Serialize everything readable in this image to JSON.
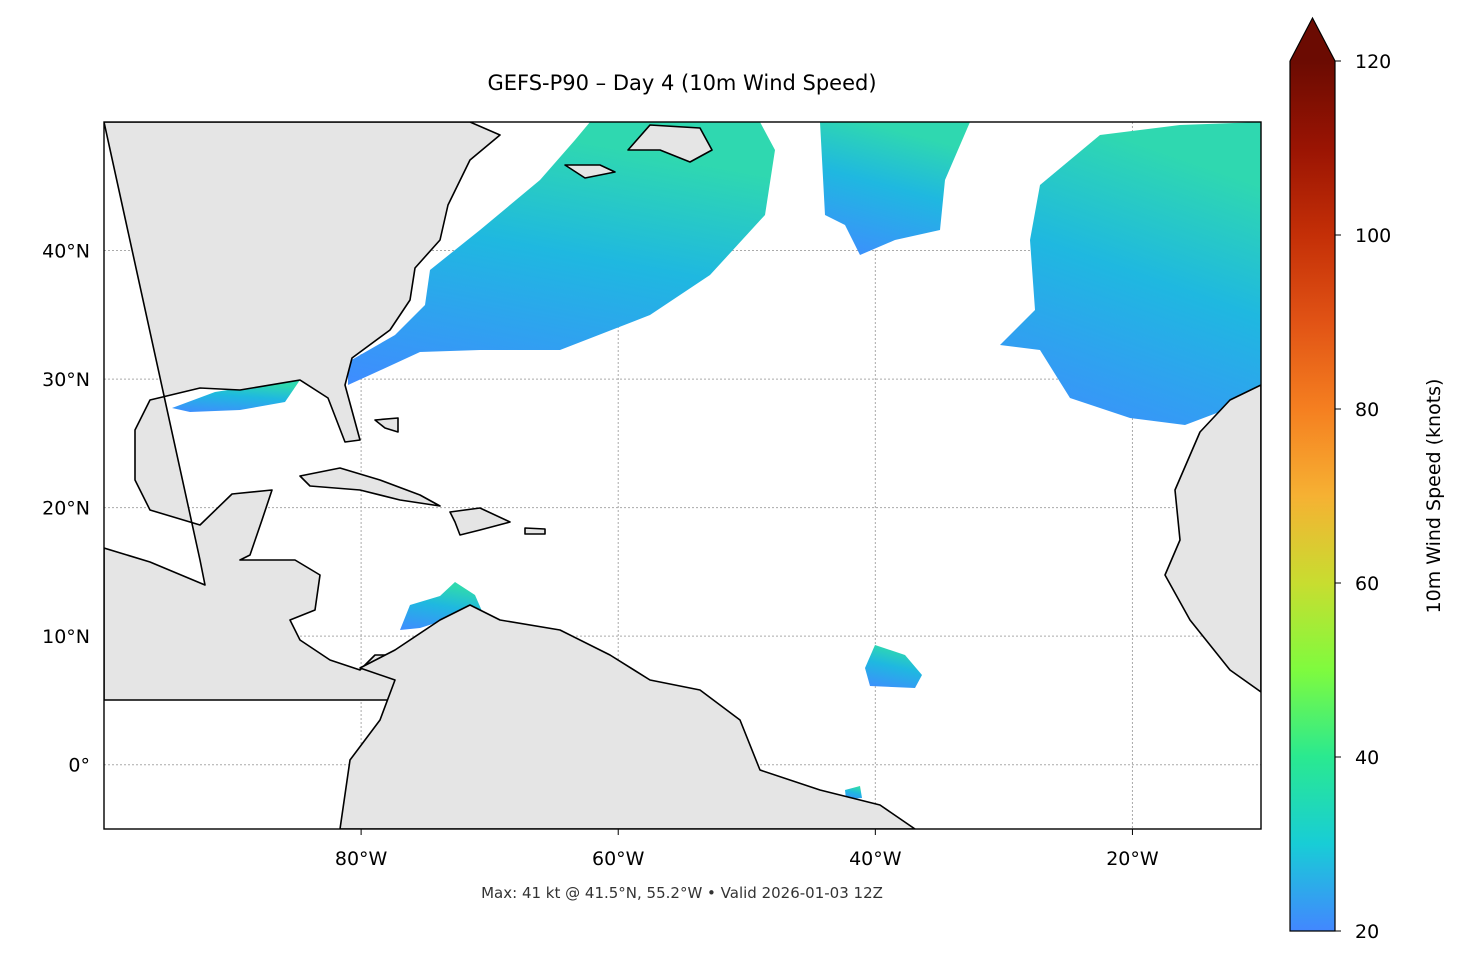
{
  "chart_data": {
    "type": "map",
    "title": "GEFS-P90 – Day 4 (10m Wind Speed)",
    "annotation": "Max: 41 kt @ 41.5°N, 55.2°W • Valid 2026-01-03 12Z",
    "xlim": [
      -100,
      -10
    ],
    "ylim": [
      -5,
      50
    ],
    "xticks": [
      {
        "value": -80,
        "label": "80°W"
      },
      {
        "value": -60,
        "label": "60°W"
      },
      {
        "value": -40,
        "label": "40°W"
      },
      {
        "value": -20,
        "label": "20°W"
      }
    ],
    "yticks": [
      {
        "value": 0,
        "label": "0°"
      },
      {
        "value": 10,
        "label": "10°N"
      },
      {
        "value": 20,
        "label": "20°N"
      },
      {
        "value": 30,
        "label": "30°N"
      },
      {
        "value": 40,
        "label": "40°N"
      }
    ],
    "grid": true,
    "colorbar": {
      "label": "10m Wind Speed (knots)",
      "lim": [
        20,
        120
      ],
      "ticks": [
        20,
        40,
        60,
        80,
        100,
        120
      ],
      "extend": "max",
      "colors": [
        "#4287ff",
        "#18cdd6",
        "#2ae990",
        "#7ffb3e",
        "#c8dd30",
        "#f6b133",
        "#f57f20",
        "#e15315",
        "#c42f07",
        "#9a1403",
        "#6b0b02"
      ]
    }
  }
}
